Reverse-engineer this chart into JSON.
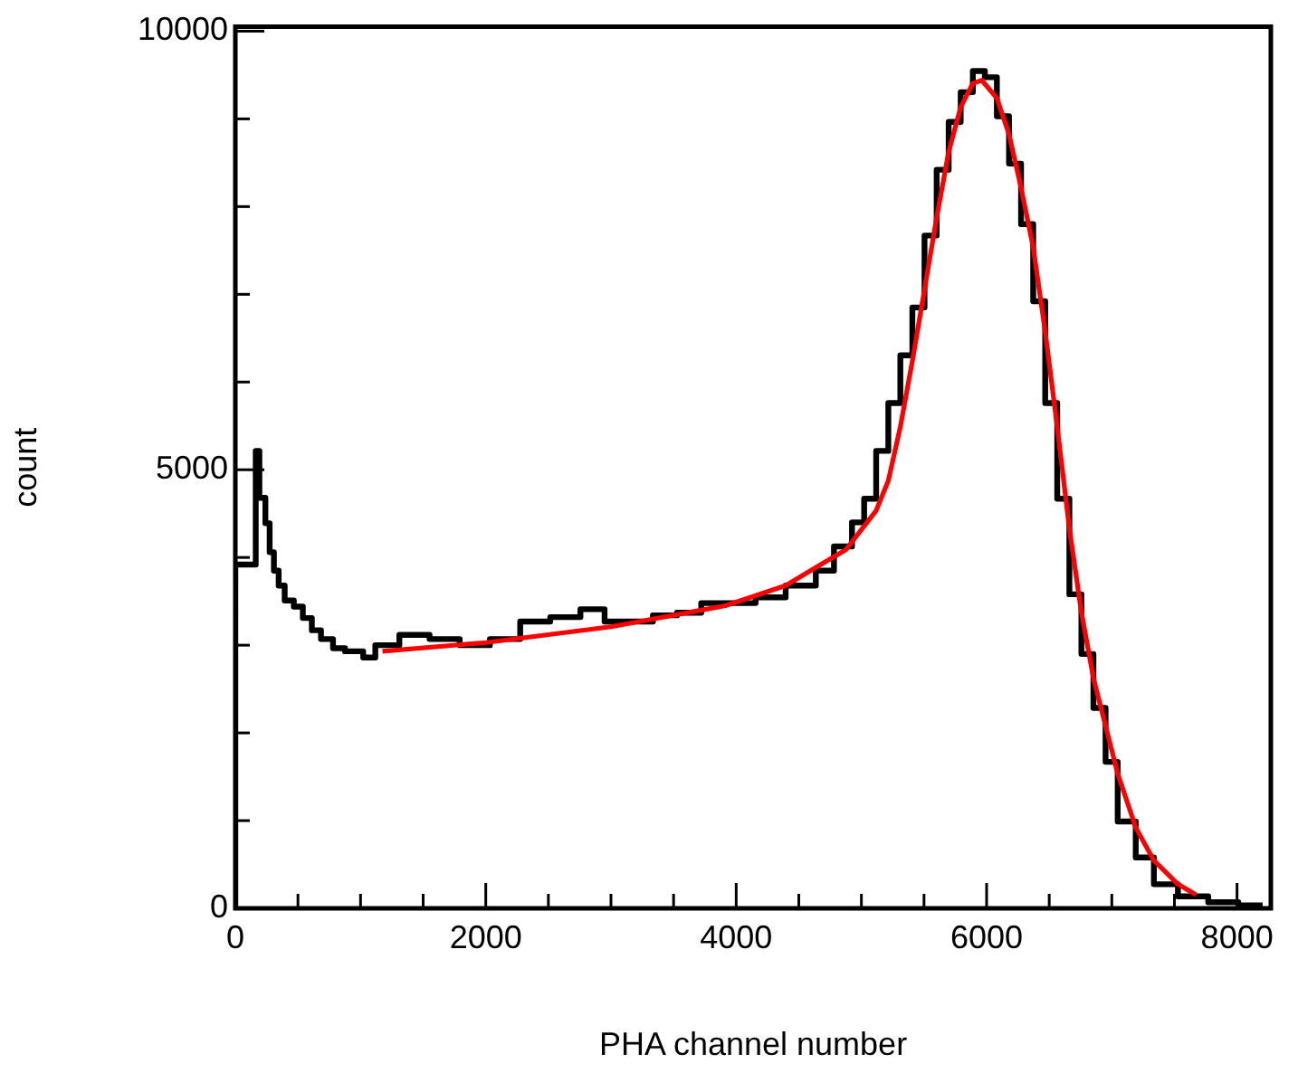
{
  "chart_data": {
    "type": "step",
    "xlabel": "PHA channel number",
    "ylabel": "count",
    "xlim": [
      0,
      8270
    ],
    "ylim": [
      0,
      10050
    ],
    "xticks": [
      0,
      {
        "value": 500,
        "label": null
      },
      2000,
      {
        "value": 1000,
        "label": null
      },
      {
        "value": 1500,
        "label": null
      },
      {
        "value": 2500,
        "label": null
      },
      {
        "value": 3000,
        "label": null
      },
      {
        "value": 3500,
        "label": null
      },
      4000,
      {
        "value": 4500,
        "label": null
      },
      {
        "value": 5000,
        "label": null
      },
      {
        "value": 5500,
        "label": null
      },
      6000,
      {
        "value": 6500,
        "label": null
      },
      {
        "value": 7000,
        "label": null
      },
      {
        "value": 7500,
        "label": null
      },
      8000
    ],
    "yticks": [
      0,
      {
        "value": 1000,
        "label": null
      },
      {
        "value": 2000,
        "label": null
      },
      {
        "value": 3000,
        "label": null
      },
      {
        "value": 4000,
        "label": null
      },
      5000,
      {
        "value": 6000,
        "label": null
      },
      {
        "value": 7000,
        "label": null
      },
      {
        "value": 8000,
        "label": null
      },
      {
        "value": 9000,
        "label": null
      },
      10000
    ],
    "marker": "none",
    "grid": false,
    "series": [
      {
        "type": "step",
        "color": "#000000",
        "x": [
          0,
          163,
          192,
          240,
          274,
          308,
          346,
          394,
          467,
          539,
          611,
          684,
          780,
          876,
          1021,
          1118,
          1310,
          1551,
          1792,
          2033,
          2275,
          2515,
          2756,
          2949,
          3142,
          3335,
          3527,
          3721,
          3961,
          4155,
          4395,
          4636,
          4781,
          4925,
          5022,
          5118,
          5215,
          5311,
          5407,
          5504,
          5601,
          5697,
          5793,
          5890,
          5986,
          6082,
          6179,
          6275,
          6372,
          6468,
          6564,
          6661,
          6757,
          6853,
          6950,
          7047,
          7191,
          7336,
          7528,
          7770,
          8010,
          8204
        ],
        "values": [
          0,
          3920,
          5215,
          4680,
          4390,
          4060,
          3850,
          3680,
          3510,
          3440,
          3310,
          3170,
          3070,
          2965,
          2930,
          2860,
          3000,
          3117,
          3070,
          3000,
          3070,
          3270,
          3320,
          3410,
          3270,
          3270,
          3340,
          3370,
          3480,
          3480,
          3545,
          3680,
          3850,
          4125,
          4400,
          4670,
          5215,
          5760,
          6305,
          6850,
          7670,
          8420,
          8965,
          9305,
          9545,
          9475,
          9030,
          8490,
          7800,
          6920,
          5760,
          4670,
          3580,
          2900,
          2285,
          1670,
          990,
          580,
          275,
          137,
          70,
          35
        ]
      },
      {
        "type": "line",
        "color": "#ff0000",
        "x": [
          1175,
          2000,
          3000,
          3913,
          4395,
          4636,
          4877,
          5118,
          5215,
          5311,
          5407,
          5504,
          5601,
          5697,
          5793,
          5890,
          5962,
          6082,
          6179,
          6275,
          6372,
          6468,
          6564,
          6661,
          6757,
          6853,
          6950,
          7047,
          7191,
          7336,
          7528,
          7672
        ],
        "values": [
          2930,
          3030,
          3210,
          3450,
          3680,
          3885,
          4090,
          4535,
          4875,
          5490,
          6240,
          7055,
          7875,
          8625,
          9135,
          9405,
          9440,
          9235,
          8825,
          8215,
          7535,
          6575,
          5490,
          4330,
          3375,
          2625,
          2080,
          1535,
          920,
          545,
          275,
          155
        ]
      }
    ]
  }
}
